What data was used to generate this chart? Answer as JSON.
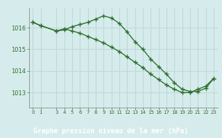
{
  "title": "Graphe pression niveau de la mer (hPa)",
  "background_color": "#d6ecec",
  "label_bg_color": "#2d6e2d",
  "grid_color": "#c0d8d8",
  "line_color": "#2d6e2d",
  "x_ticks": [
    0,
    1,
    3,
    4,
    5,
    6,
    7,
    8,
    9,
    10,
    11,
    12,
    13,
    14,
    15,
    16,
    17,
    18,
    19,
    20,
    21,
    22,
    23
  ],
  "ylim": [
    1012.3,
    1016.9
  ],
  "yticks": [
    1013,
    1014,
    1015,
    1016
  ],
  "series1_x": [
    0,
    1,
    3,
    4,
    5,
    6,
    7,
    8,
    9,
    10,
    11,
    12,
    13,
    14,
    15,
    16,
    17,
    18,
    19,
    20,
    21,
    22,
    23
  ],
  "series1_y": [
    1016.25,
    1016.1,
    1015.85,
    1015.9,
    1016.05,
    1016.15,
    1016.25,
    1016.4,
    1016.55,
    1016.45,
    1016.2,
    1015.8,
    1015.35,
    1015.0,
    1014.55,
    1014.2,
    1013.85,
    1013.45,
    1013.15,
    1013.05,
    1013.05,
    1013.2,
    1013.65
  ],
  "series2_x": [
    0,
    1,
    3,
    4,
    5,
    6,
    7,
    8,
    9,
    10,
    11,
    12,
    13,
    14,
    15,
    16,
    17,
    18,
    19,
    20,
    21,
    22,
    23
  ],
  "series2_y": [
    1016.25,
    1016.1,
    1015.85,
    1015.95,
    1015.85,
    1015.75,
    1015.6,
    1015.45,
    1015.3,
    1015.1,
    1014.9,
    1014.65,
    1014.4,
    1014.15,
    1013.85,
    1013.6,
    1013.35,
    1013.15,
    1013.0,
    1013.0,
    1013.15,
    1013.3,
    1013.65
  ]
}
